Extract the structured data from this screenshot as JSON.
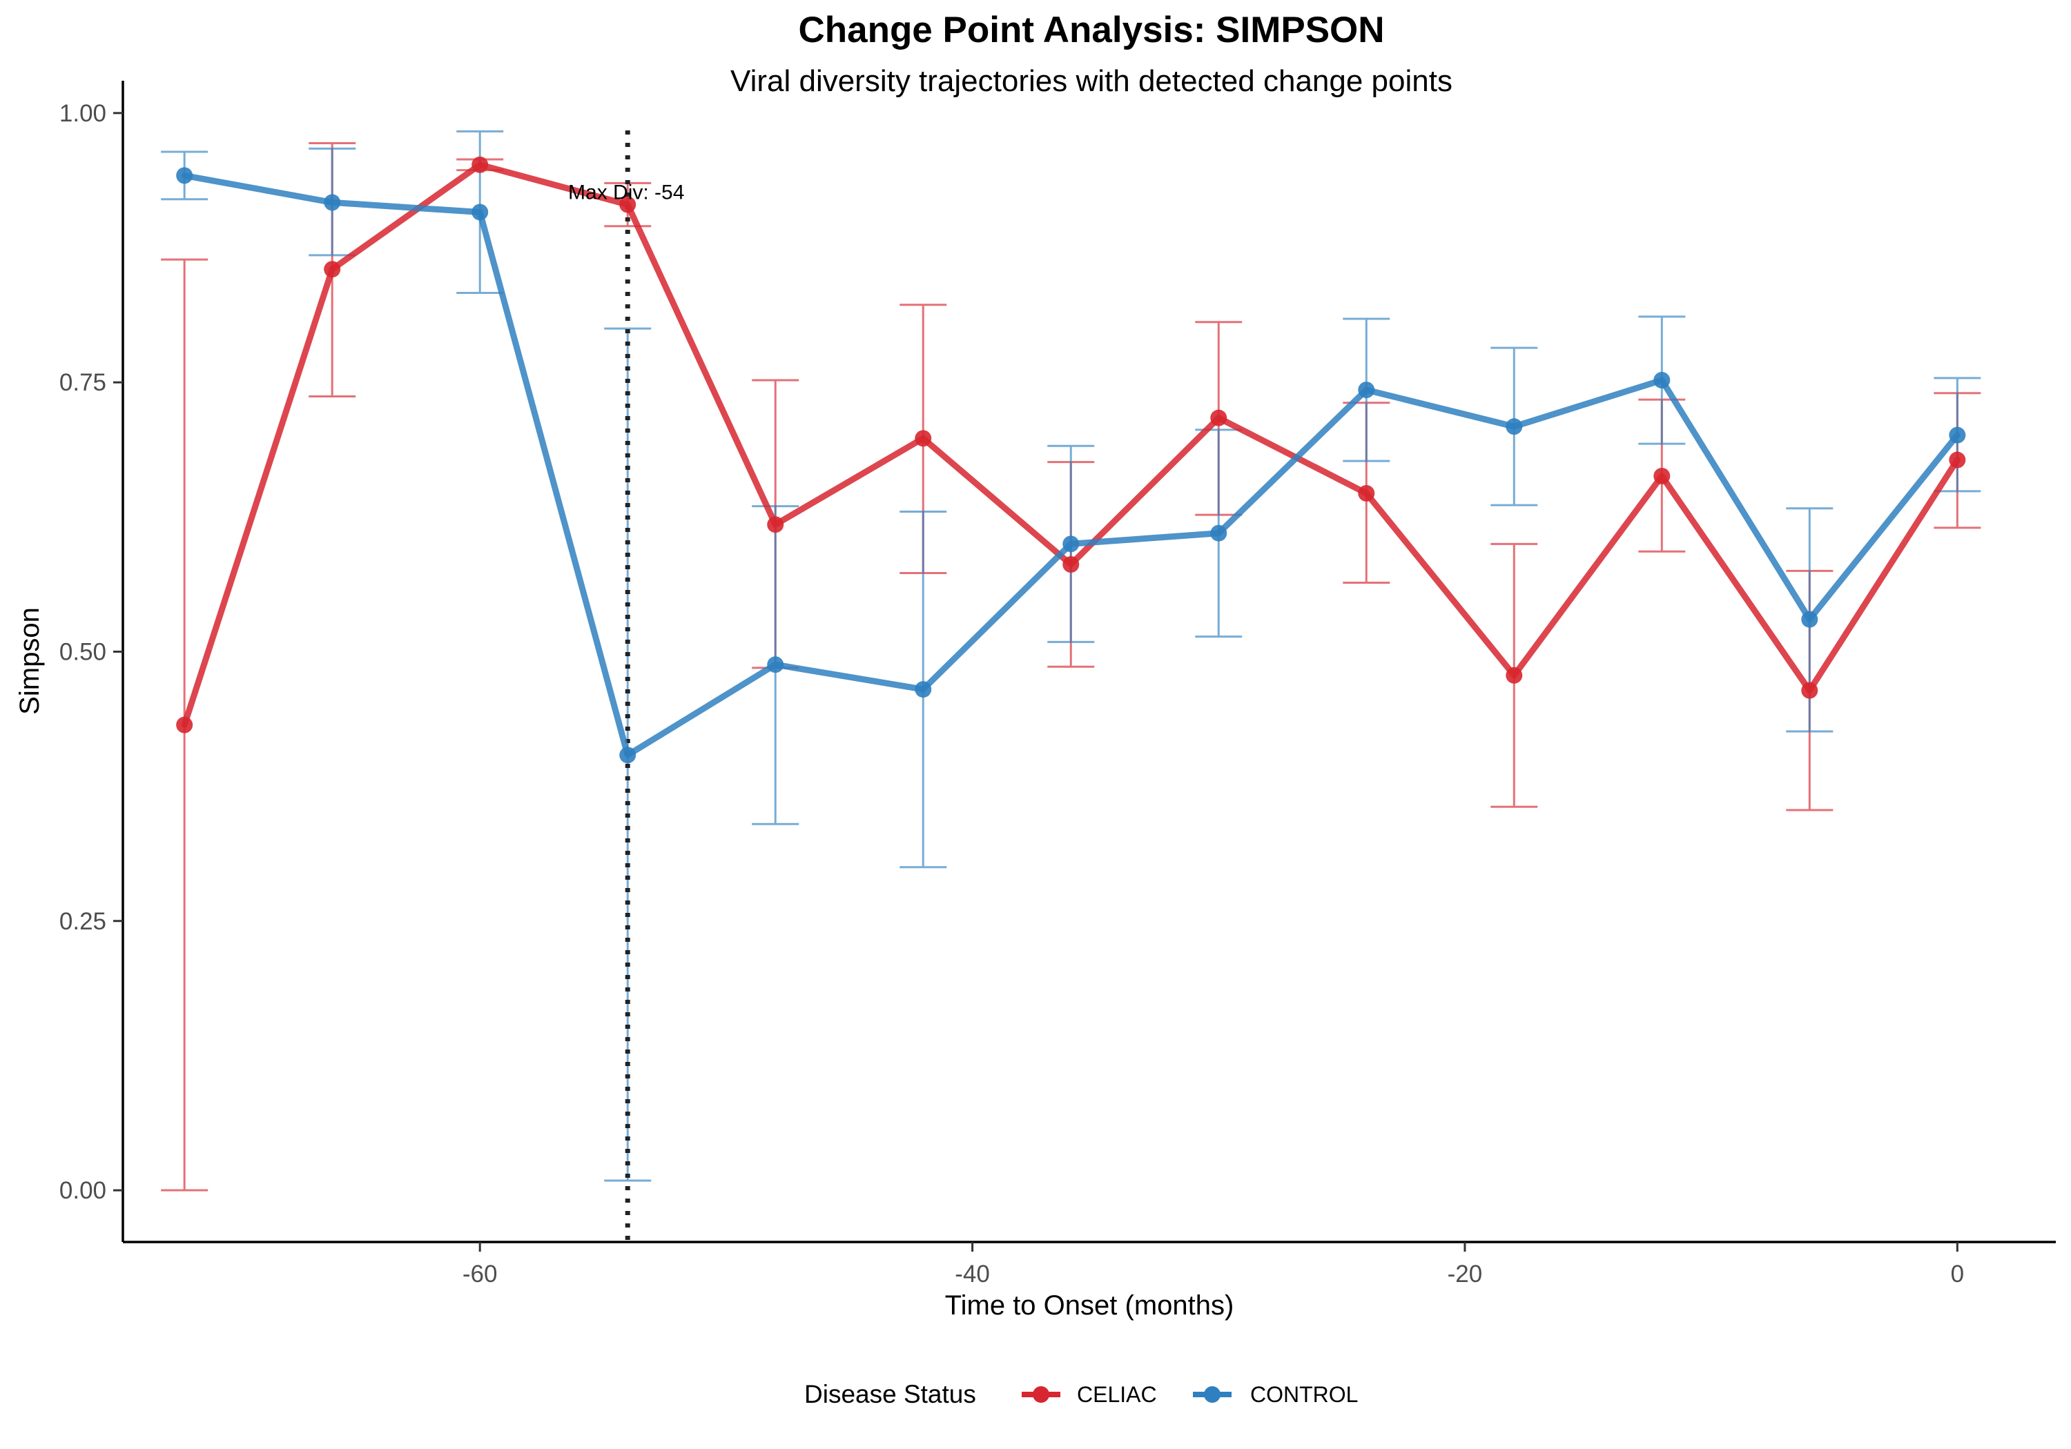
{
  "chart_data": {
    "type": "line",
    "title": "Change Point Analysis: SIMPSON",
    "subtitle": "Viral diversity trajectories with detected change points",
    "xlabel": "Time to Onset (months)",
    "ylabel": "Simpson",
    "xlim": [
      -74.5,
      4
    ],
    "ylim": [
      -0.048,
      1.03
    ],
    "x_ticks": [
      -60,
      -40,
      -20,
      0
    ],
    "x_tick_labels": [
      "-60",
      "-40",
      "-20",
      "0"
    ],
    "y_ticks": [
      0,
      0.25,
      0.5,
      0.75,
      1.0
    ],
    "y_tick_labels": [
      "0.00",
      "0.25",
      "0.50",
      "0.75",
      "1.00"
    ],
    "grid": false,
    "legend": {
      "title": "Disease Status",
      "position": "bottom"
    },
    "change_point": {
      "x": -54,
      "label": "Max Div: -54",
      "color": "#222222",
      "style": "dotted"
    },
    "series": [
      {
        "name": "CELIAC",
        "color": "#D7262F",
        "x": [
          -72,
          -66,
          -60,
          -54,
          -48,
          -42,
          -36,
          -30,
          -24,
          -18,
          -12,
          -6,
          0
        ],
        "y": [
          0.432,
          0.855,
          0.952,
          0.915,
          0.618,
          0.698,
          0.581,
          0.717,
          0.647,
          0.478,
          0.663,
          0.464,
          0.678
        ],
        "ymin": [
          0.0,
          0.737,
          0.947,
          0.895,
          0.485,
          0.573,
          0.486,
          0.627,
          0.564,
          0.356,
          0.593,
          0.353,
          0.615
        ],
        "ymax": [
          0.864,
          0.972,
          0.957,
          0.935,
          0.752,
          0.822,
          0.676,
          0.806,
          0.731,
          0.6,
          0.734,
          0.575,
          0.74
        ]
      },
      {
        "name": "CONTROL",
        "color": "#2F80C0",
        "x": [
          -72,
          -66,
          -60,
          -54,
          -48,
          -42,
          -36,
          -30,
          -24,
          -18,
          -12,
          -6,
          0
        ],
        "y": [
          0.942,
          0.917,
          0.908,
          0.404,
          0.488,
          0.465,
          0.6,
          0.61,
          0.743,
          0.709,
          0.752,
          0.53,
          0.701
        ],
        "ymin": [
          0.92,
          0.868,
          0.833,
          0.009,
          0.34,
          0.3,
          0.509,
          0.514,
          0.677,
          0.636,
          0.693,
          0.426,
          0.649
        ],
        "ymax": [
          0.964,
          0.967,
          0.983,
          0.8,
          0.635,
          0.63,
          0.691,
          0.706,
          0.809,
          0.782,
          0.811,
          0.633,
          0.754
        ]
      }
    ]
  }
}
